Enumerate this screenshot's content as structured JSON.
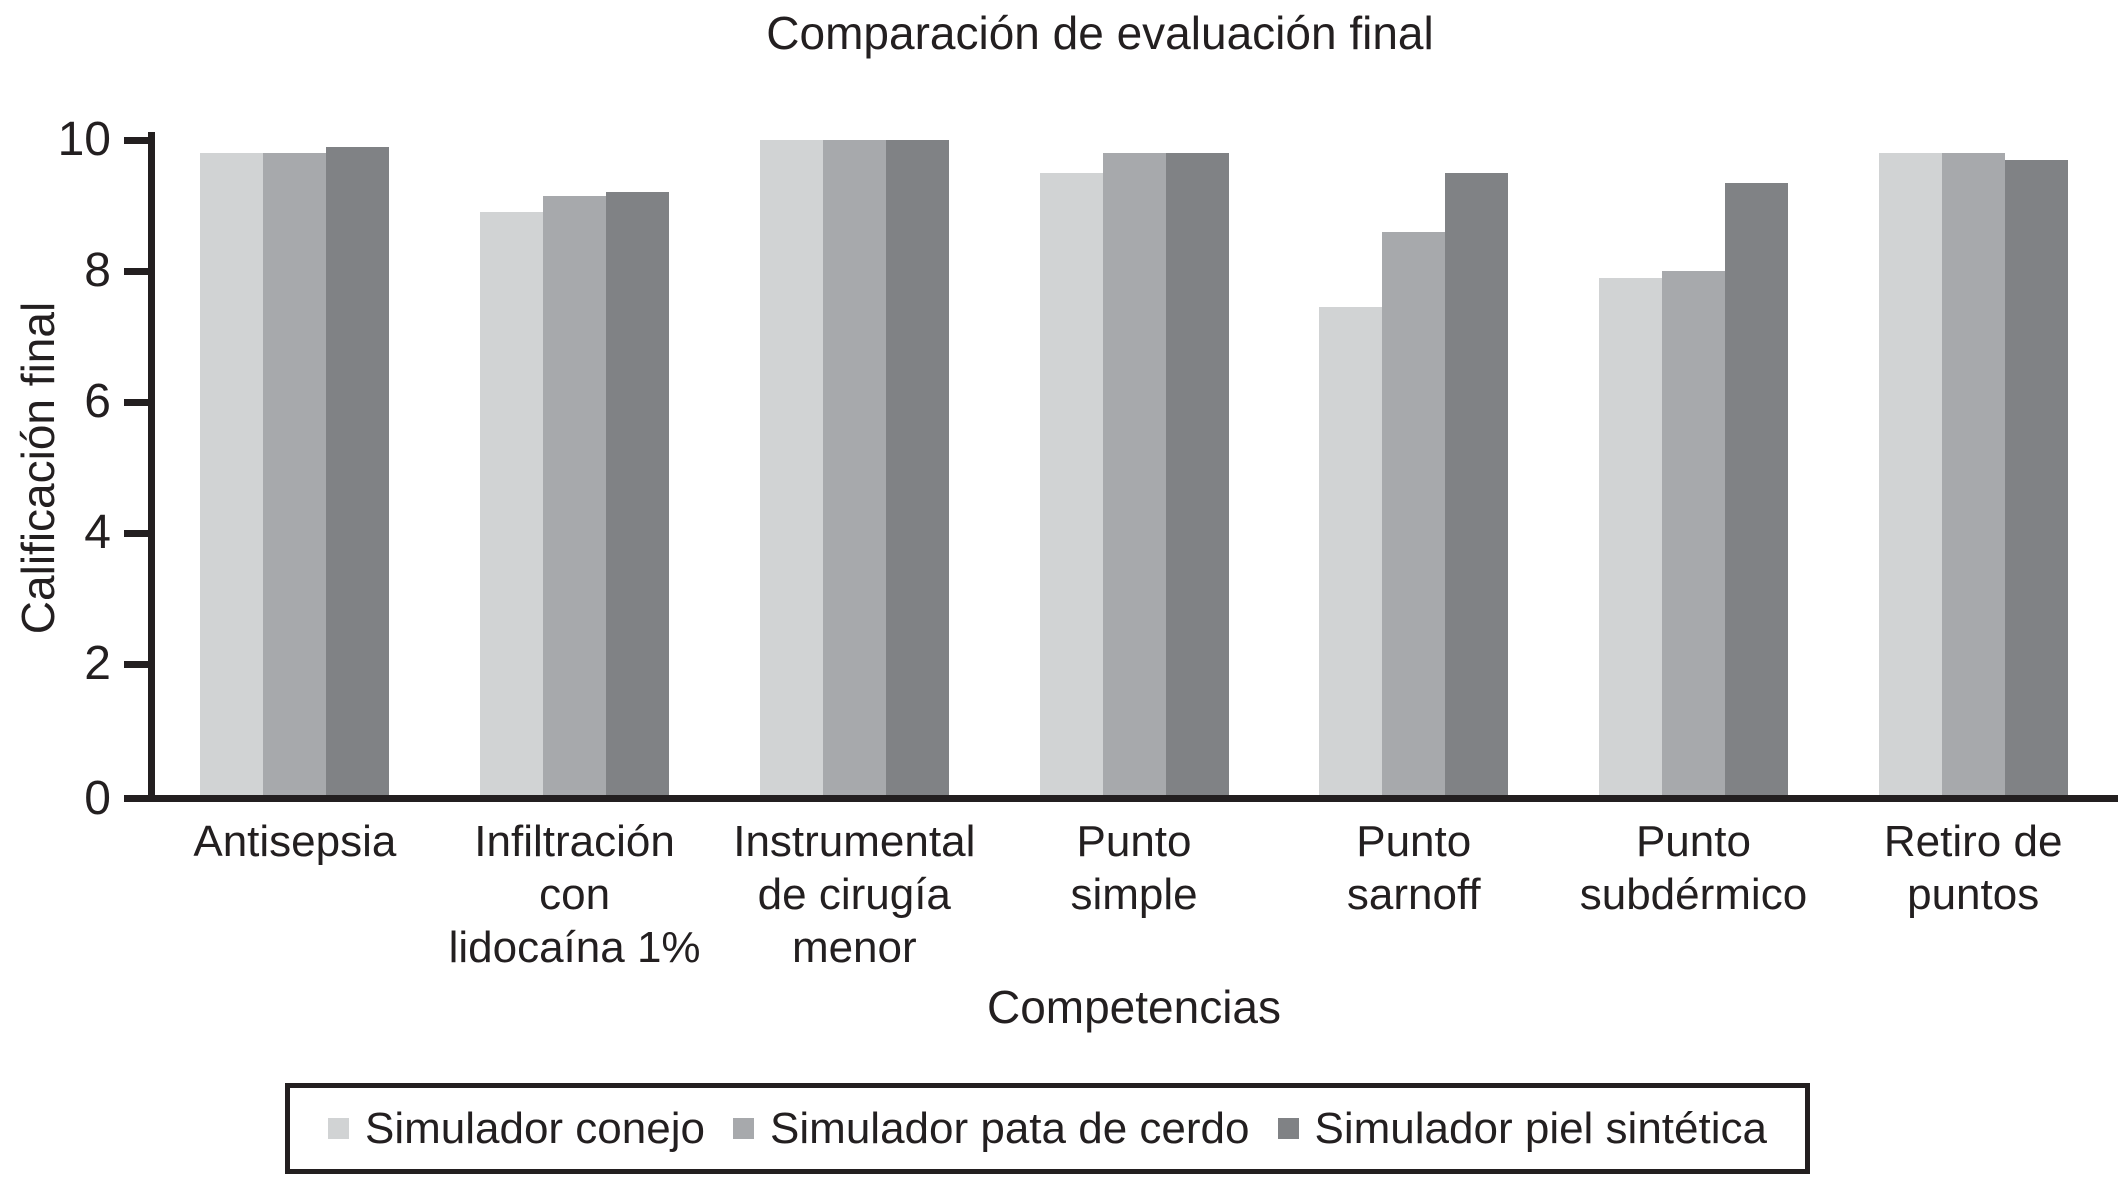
{
  "figure": {
    "background": "#ffffff",
    "text_color": "#231f20"
  },
  "chart_data": {
    "type": "bar",
    "title": "Comparación de evaluación final",
    "xlabel": "Competencias",
    "ylabel": "Calificación final",
    "ylim": [
      0,
      10
    ],
    "yticks": [
      0,
      2,
      4,
      6,
      8,
      10
    ],
    "grid": false,
    "legend_position": "bottom",
    "axis_color": "#231f20",
    "categories": [
      "Antisepsia",
      "Infiltración con lidocaína 1%",
      "Instrumental de cirugía menor",
      "Punto simple",
      "Punto sarnoff",
      "Punto subdérmico",
      "Retiro de puntos"
    ],
    "category_label_lines": [
      [
        "Antisepsia"
      ],
      [
        "Infiltración",
        "con",
        "lidocaína 1%"
      ],
      [
        "Instrumental",
        "de cirugía",
        "menor"
      ],
      [
        "Punto",
        "simple"
      ],
      [
        "Punto",
        "sarnoff"
      ],
      [
        "Punto",
        "subdérmico"
      ],
      [
        "Retiro de",
        "puntos"
      ]
    ],
    "series": [
      {
        "name": "Simulador conejo",
        "color": "#d1d3d4",
        "values": [
          9.8,
          8.9,
          10,
          9.5,
          7.45,
          7.9,
          9.8
        ]
      },
      {
        "name": "Simulador pata de cerdo",
        "color": "#a7a9ac",
        "values": [
          9.8,
          9.15,
          10,
          9.8,
          8.6,
          8.0,
          9.8
        ]
      },
      {
        "name": "Simulador piel sintética",
        "color": "#808285",
        "values": [
          9.9,
          9.2,
          10,
          9.8,
          9.5,
          9.35,
          9.7
        ]
      }
    ]
  }
}
